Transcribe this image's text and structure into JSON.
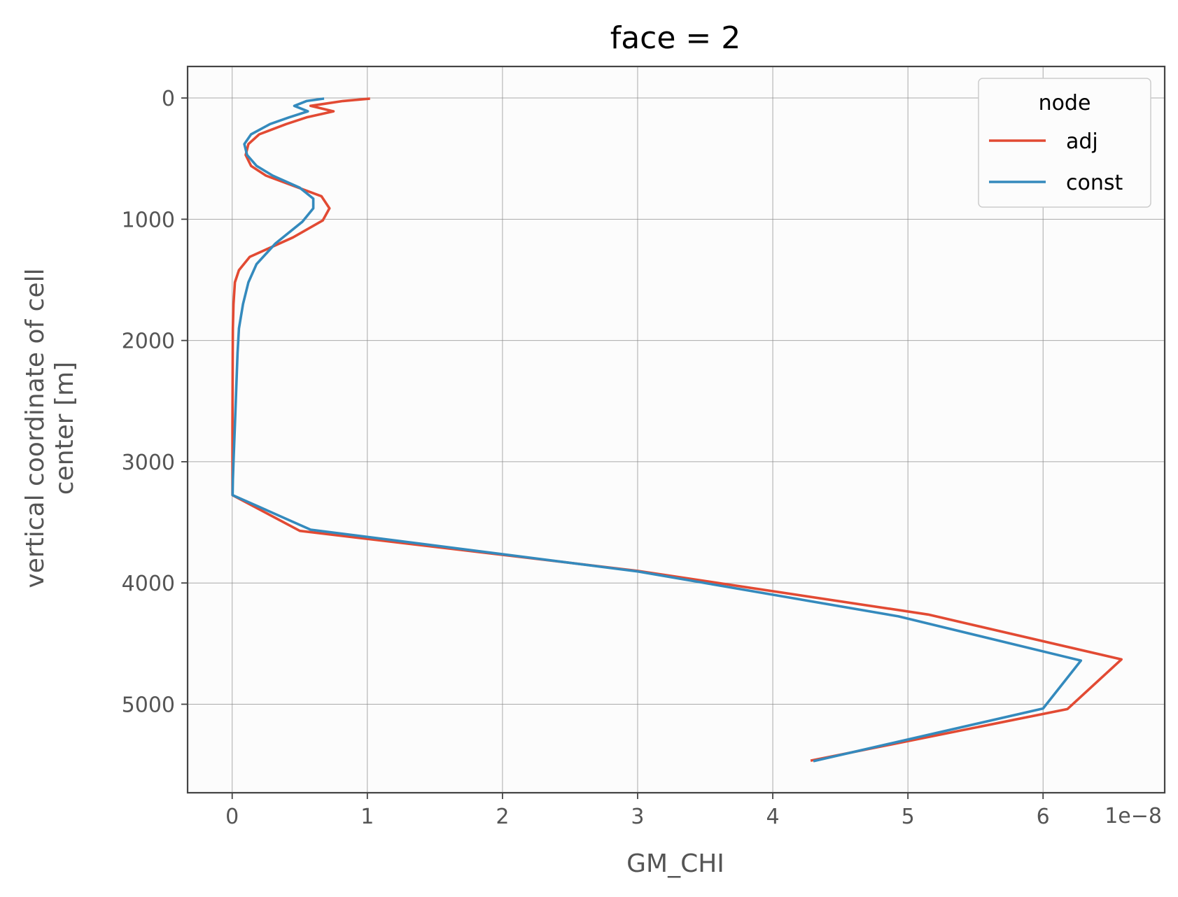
{
  "chart_data": {
    "type": "line",
    "title": "face = 2",
    "xlabel": "GM_CHI",
    "ylabel_lines": [
      "vertical coordinate of cell",
      "center [m]"
    ],
    "x_offset_label": "1e−8",
    "xlim": [
      -0.33,
      6.9
    ],
    "ylim": [
      5730,
      -260
    ],
    "y_inverted": true,
    "xticks": [
      0,
      1,
      2,
      3,
      4,
      5,
      6
    ],
    "yticks": [
      0,
      1000,
      2000,
      3000,
      4000,
      5000
    ],
    "grid": true,
    "legend": {
      "title": "node",
      "position": "top-right"
    },
    "series": [
      {
        "name": "adj",
        "color": "#e24a33",
        "x": [
          1.02,
          0.82,
          0.58,
          0.75,
          0.55,
          0.4,
          0.2,
          0.12,
          0.1,
          0.14,
          0.25,
          0.66,
          0.72,
          0.67,
          0.45,
          0.13,
          0.05,
          0.02,
          0.01,
          0.005,
          0.004,
          0.003,
          0.002,
          0.002,
          0.002,
          0.002,
          0.5,
          3.0,
          5.15,
          6.58,
          6.18,
          4.28
        ],
        "y": [
          5,
          25,
          65,
          110,
          160,
          215,
          300,
          380,
          470,
          560,
          640,
          810,
          910,
          1010,
          1150,
          1310,
          1420,
          1520,
          1700,
          1900,
          2100,
          2400,
          2700,
          3000,
          3150,
          3275,
          3570,
          3900,
          4260,
          4630,
          5040,
          5465
        ],
        "markers": false
      },
      {
        "name": "const",
        "color": "#348abd",
        "x": [
          0.68,
          0.55,
          0.46,
          0.56,
          0.42,
          0.28,
          0.14,
          0.09,
          0.11,
          0.18,
          0.3,
          0.5,
          0.6,
          0.6,
          0.52,
          0.32,
          0.18,
          0.12,
          0.08,
          0.05,
          0.04,
          0.03,
          0.02,
          0.01,
          0.005,
          0.003,
          0.58,
          3.0,
          4.93,
          6.28,
          6.0,
          4.3
        ],
        "y": [
          5,
          25,
          65,
          110,
          160,
          215,
          300,
          380,
          470,
          560,
          640,
          740,
          830,
          910,
          1020,
          1200,
          1370,
          1520,
          1700,
          1900,
          2100,
          2400,
          2700,
          3000,
          3150,
          3275,
          3560,
          3905,
          4275,
          4640,
          5035,
          5470
        ],
        "markers": false
      }
    ]
  }
}
